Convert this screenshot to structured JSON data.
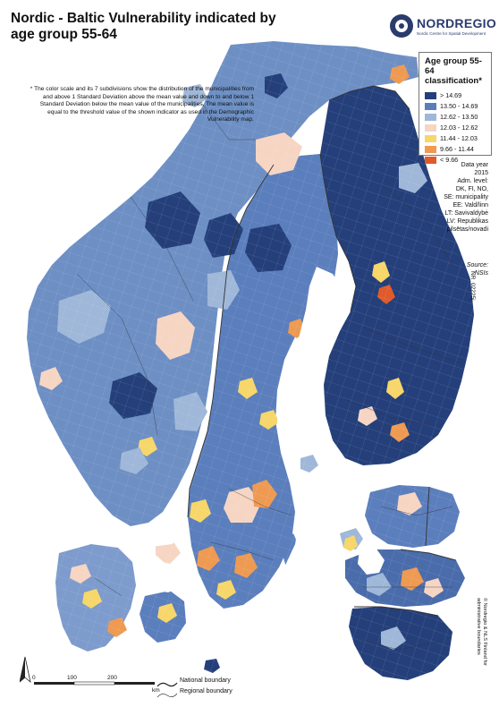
{
  "title": "Nordic - Baltic Vulnerability indicated by age group 55-64",
  "logo": {
    "name": "NORDREGIO",
    "subtitle": "Nordic Centre for Spatial Development"
  },
  "footnote": "* The color scale and its 7 subdivisions show the distribution of the municipalities from and above 1 Standard Deviation above the mean value and down to and below 1 Standard Deviation below the mean value of the municipalities. The mean value is equal to the threshold value of the shown indicator as used in the Demographic Vulnerability map.",
  "legend": {
    "title": "Age group 55-64 classification*",
    "classes": [
      {
        "label": "> 14.69",
        "color": "#243f7a"
      },
      {
        "label": "13.50 - 14.69",
        "color": "#5a7fb8"
      },
      {
        "label": "12.62 - 13.50",
        "color": "#9fb7d8"
      },
      {
        "label": "12.03 - 12.62",
        "color": "#f6d5c3"
      },
      {
        "label": "11.44 - 12.03",
        "color": "#f7d66a"
      },
      {
        "label": "9.66 - 11.44",
        "color": "#ee9a52"
      },
      {
        "label": "< 9.66",
        "color": "#e05a2a"
      }
    ]
  },
  "meta": {
    "data_year_label": "Data year",
    "data_year": "2015",
    "adm_level_label": "Adm. level:",
    "adm_levels": [
      "DK, FI, NO,",
      "SE: municipality",
      "EE: Vald/linn",
      "LT: Savivaldybė",
      "LV: Republikas",
      "pilsētas/novadi"
    ]
  },
  "source": {
    "label": "Source:",
    "value": "NSIs"
  },
  "map_number": "NR_02225j",
  "copyright": {
    "line1": "© Nordregio & NLS Finland for",
    "line2": "administrative boundaries"
  },
  "scale_bar": {
    "ticks": [
      "0",
      "100",
      "200"
    ],
    "unit": "km"
  },
  "boundary_legend": {
    "national": "National boundary",
    "regional": "Regional boundary"
  },
  "map_colors": {
    "background": "#ffffff",
    "land_outside": "#f0f0f0",
    "boundary": "#333333"
  }
}
